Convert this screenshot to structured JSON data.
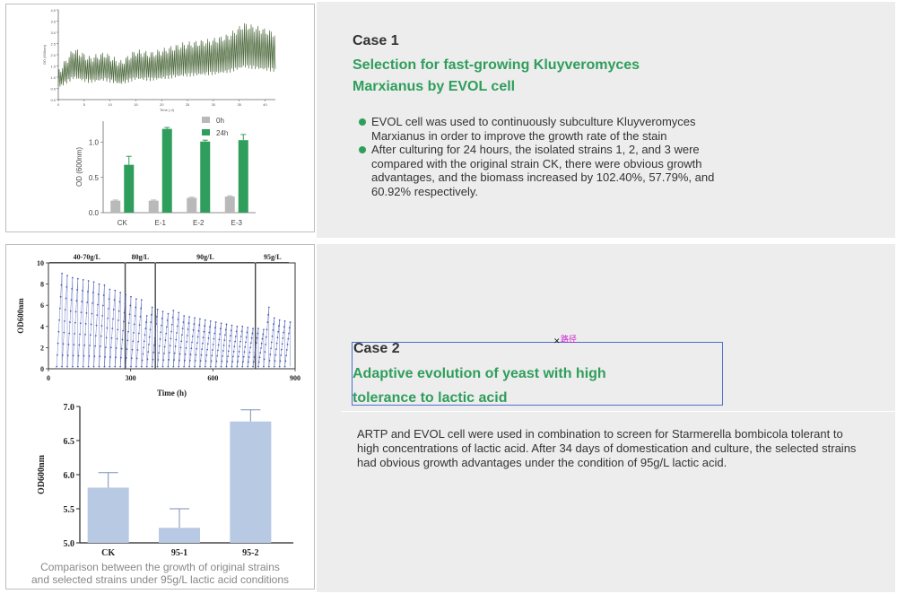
{
  "case1": {
    "label": "Case 1",
    "title_line1": "Selection for fast-growing Kluyveromyces",
    "title_line2": "Marxianus by EVOL cell",
    "bullets": [
      "EVOL cell was used to continuously subculture Kluyveromyces Marxianus in order to improve the growth rate of the stain",
      "After culturing for 24 hours, the isolated strains 1, 2, and 3 were compared with the original strain CK, there were obvious growth advantages, and the biomass increased by 102.40%, 57.79%, and 60.92% respectively."
    ]
  },
  "case2": {
    "label": "Case 2",
    "title_line1": "Adaptive evolution of yeast with high",
    "title_line2": "tolerance to lactic acid",
    "path_tag": "路径",
    "paragraph": "ARTP and EVOL cell were used in combination to screen for Starmerella bombicola tolerant to high concentrations of lactic acid. After 34 days of domestication and culture, the selected strains had obvious growth advantages under the condition of 95g/L lactic acid.",
    "caption_line1": "Comparison between the growth of original strains",
    "caption_line2": "and selected strains under 95g/L lactic acid conditions"
  },
  "colors": {
    "accent_green": "#2f9e5c",
    "bar_gray": "#b9b9b9",
    "bar_green": "#2f9e5c",
    "bar_blue": "#b8c9e3",
    "line_olive": "#4f6b3f",
    "point_blue": "#4b5fb7"
  },
  "chart_data": [
    {
      "type": "line",
      "title": "",
      "xlabel": "Time ( d)",
      "ylabel": "OD (600nm)",
      "x_ticks": [
        "0",
        "5",
        "10",
        "15",
        "20",
        "25",
        "30",
        "35",
        "40"
      ],
      "y_ticks": [
        "0.0",
        "0.5",
        "1.0",
        "1.5",
        "2.0",
        "2.5",
        "3.0",
        "3.5",
        "4.0"
      ],
      "ylim": [
        0,
        4
      ],
      "xlim": [
        0,
        42
      ],
      "grid": false,
      "description_series": [
        {
          "x": [
            0,
            3,
            6,
            9,
            12,
            15,
            18,
            21,
            24,
            27,
            30,
            33,
            36,
            39,
            42
          ],
          "values": [
            1.2,
            2.2,
            1.8,
            2.0,
            1.6,
            2.1,
            2.0,
            2.2,
            2.4,
            2.5,
            2.6,
            2.8,
            3.3,
            3.1,
            2.9
          ]
        }
      ]
    },
    {
      "type": "bar",
      "xlabel": "",
      "ylabel": "OD (600nm)",
      "categories": [
        "CK",
        "E-1",
        "E-2",
        "E-3"
      ],
      "ylim": [
        0,
        1.3
      ],
      "y_ticks": [
        "0.0",
        "0.5",
        "1.0"
      ],
      "legend_position": "top-right",
      "series": [
        {
          "name": "0h",
          "values": [
            0.17,
            0.17,
            0.21,
            0.23
          ],
          "errors": [
            0.01,
            0.01,
            0.01,
            0.01
          ]
        },
        {
          "name": "24h",
          "values": [
            0.68,
            1.19,
            1.01,
            1.03
          ],
          "errors": [
            0.12,
            0.02,
            0.02,
            0.08
          ]
        }
      ]
    },
    {
      "type": "scatter",
      "xlabel": "Time (h)",
      "ylabel": "OD600nm",
      "x_ticks": [
        "0",
        "300",
        "600",
        "900"
      ],
      "y_ticks": [
        "0",
        "2",
        "4",
        "6",
        "8",
        "10"
      ],
      "xlim": [
        0,
        900
      ],
      "ylim": [
        0,
        10
      ],
      "segments": [
        {
          "label": "40-70g/L",
          "start": 0,
          "end": 280
        },
        {
          "label": "80g/L",
          "start": 280,
          "end": 390
        },
        {
          "label": "90g/L",
          "start": 390,
          "end": 755
        },
        {
          "label": "95g/L",
          "start": 755,
          "end": 880
        }
      ],
      "cycles_peak": [
        9.0,
        8.8,
        8.6,
        8.5,
        8.4,
        8.3,
        8.2,
        8.0,
        7.9,
        7.5,
        7.4,
        7.2,
        7.0,
        6.8,
        6.6,
        6.5,
        5.0,
        5.8,
        5.6,
        5.4,
        5.2,
        5.5,
        5.3,
        5.0,
        4.9,
        4.8,
        4.7,
        4.6,
        4.5,
        4.4,
        4.3,
        4.2,
        4.1,
        4.0,
        4.0,
        3.9,
        3.8,
        3.8,
        3.7,
        5.8,
        4.8,
        4.6,
        4.5,
        4.4
      ]
    },
    {
      "type": "bar",
      "xlabel": "",
      "ylabel": "OD600nm",
      "categories": [
        "CK",
        "95-1",
        "95-2"
      ],
      "ylim": [
        5.0,
        7.0
      ],
      "y_ticks": [
        "5.0",
        "5.5",
        "6.0",
        "6.5",
        "7.0"
      ],
      "series": [
        {
          "values": [
            5.81,
            5.22,
            6.78
          ],
          "errors": [
            0.22,
            0.28,
            0.17
          ]
        }
      ]
    }
  ]
}
